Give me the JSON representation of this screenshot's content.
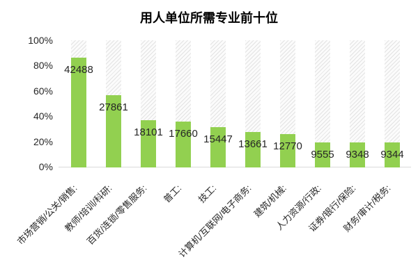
{
  "chart_data": {
    "type": "bar",
    "title": "用人单位所需专业前十位",
    "categories": [
      "市场营销/公关/销售:",
      "教师/培训/科研:",
      "百货/连锁/零售服务:",
      "普工:",
      "技工:",
      "计算机/互联网/电子商务:",
      "建筑/机械:",
      "人力资源/行政:",
      "证券/银行/保险:",
      "财务/审计/税务:"
    ],
    "values": [
      42488,
      27861,
      18101,
      17660,
      15447,
      13661,
      12770,
      9555,
      9348,
      9344
    ],
    "percent_of_axis": [
      86.3,
      56.6,
      36.8,
      35.9,
      31.4,
      27.7,
      25.9,
      19.4,
      19.0,
      19.0
    ],
    "data_labels": [
      "42488",
      "27861",
      "18101",
      "17660",
      "15447",
      "13661",
      "12770",
      "9555",
      "9348",
      "9344"
    ],
    "y_ticks": [
      "0%",
      "20%",
      "40%",
      "60%",
      "80%",
      "100%"
    ],
    "ylim": [
      0,
      100
    ],
    "xlabel": "",
    "ylabel": "",
    "legend": "none",
    "grid": "none",
    "background_bars": "hatched bars to 100% behind each value bar"
  },
  "colors": {
    "bar_fill": "#92d050",
    "hatch_line": "#e3e3e3",
    "axis_line": "#d9d9d9",
    "label_text": "#262626",
    "title_text": "#000000",
    "background": "#ffffff"
  }
}
